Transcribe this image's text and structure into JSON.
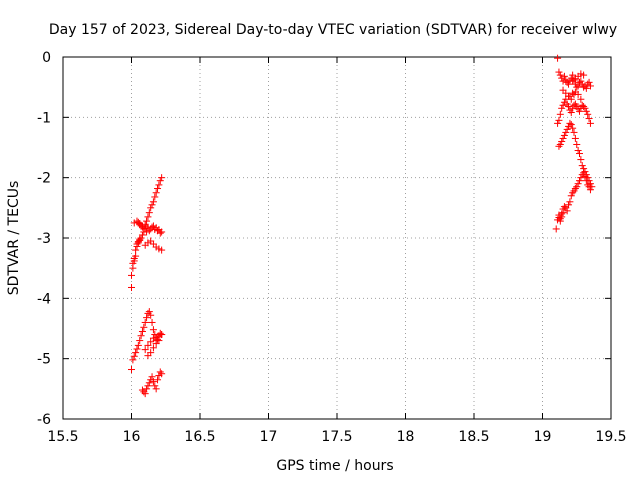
{
  "chart_data": {
    "type": "scatter",
    "title": "Day 157 of 2023, Sidereal Day-to-day VTEC variation (SDTVAR) for receiver wlwy",
    "xlabel": "GPS time / hours",
    "ylabel": "SDTVAR / TECUs",
    "xlim": [
      15.5,
      19.5
    ],
    "ylim": [
      -6,
      0
    ],
    "xticks": [
      "15.5",
      "16",
      "16.5",
      "17",
      "17.5",
      "18",
      "18.5",
      "19",
      "19.5"
    ],
    "yticks": [
      "0",
      "-1",
      "-2",
      "-3",
      "-4",
      "-5",
      "-6"
    ],
    "grid": true,
    "marker": "+",
    "color": "#ff0000",
    "series": [
      {
        "x": [
          16.0,
          16.0,
          16.01,
          16.01,
          16.02,
          16.02,
          16.03,
          16.03,
          16.04,
          16.04,
          16.05,
          16.05,
          16.06,
          16.06,
          16.07,
          16.08,
          16.09,
          16.1,
          16.11,
          16.12,
          16.13,
          16.14,
          16.15,
          16.16,
          16.17,
          16.18,
          16.19,
          16.2,
          16.21,
          16.22,
          16.02,
          16.04,
          16.06,
          16.08,
          16.1,
          16.12,
          16.14,
          16.16,
          16.18,
          16.2,
          16.22,
          16.1,
          16.08,
          16.06,
          16.05,
          16.07,
          16.09,
          16.11,
          16.13,
          16.15,
          16.17,
          16.19,
          16.21,
          16.14,
          16.16,
          16.18,
          16.2,
          16.22,
          16.12,
          16.1,
          16.0,
          16.01,
          16.02,
          16.03,
          16.04,
          16.05,
          16.06,
          16.07,
          16.08,
          16.09,
          16.1,
          16.11,
          16.12,
          16.13,
          16.14,
          16.15,
          16.16,
          16.17,
          16.18,
          16.19,
          16.2,
          16.21,
          16.22,
          16.1,
          16.12,
          16.14,
          16.16,
          16.18,
          16.2,
          16.22,
          16.08,
          16.09,
          16.1,
          16.11,
          16.12,
          16.13,
          16.14,
          16.15,
          16.16,
          16.17,
          16.18,
          16.19,
          16.2,
          16.21,
          16.22,
          16.12,
          16.14,
          16.16,
          16.18,
          16.2
        ],
        "y": [
          -3.82,
          -3.62,
          -3.5,
          -3.42,
          -3.38,
          -3.34,
          -3.3,
          -3.2,
          -3.14,
          -3.1,
          -3.08,
          -3.06,
          -3.04,
          -3.02,
          -3.0,
          -2.95,
          -2.9,
          -2.8,
          -2.72,
          -2.65,
          -2.58,
          -2.5,
          -2.45,
          -2.4,
          -2.32,
          -2.25,
          -2.18,
          -2.12,
          -2.05,
          -2.0,
          -2.75,
          -2.72,
          -2.76,
          -2.8,
          -2.78,
          -2.82,
          -2.85,
          -2.8,
          -2.83,
          -2.86,
          -2.9,
          -2.84,
          -2.82,
          -2.78,
          -2.74,
          -2.8,
          -2.85,
          -2.9,
          -2.88,
          -2.82,
          -2.86,
          -2.88,
          -2.92,
          -3.05,
          -3.1,
          -3.15,
          -3.18,
          -3.2,
          -3.08,
          -3.12,
          -5.18,
          -5.02,
          -4.96,
          -4.9,
          -4.84,
          -4.78,
          -4.7,
          -4.62,
          -4.55,
          -4.48,
          -4.4,
          -4.32,
          -4.25,
          -4.22,
          -4.28,
          -4.4,
          -4.52,
          -4.6,
          -4.65,
          -4.68,
          -4.62,
          -4.58,
          -4.6,
          -4.85,
          -4.78,
          -4.72,
          -4.66,
          -4.7,
          -4.64,
          -4.6,
          -5.52,
          -5.55,
          -5.58,
          -5.5,
          -5.45,
          -5.4,
          -5.35,
          -5.3,
          -5.38,
          -5.45,
          -5.5,
          -5.35,
          -5.28,
          -5.22,
          -5.25,
          -4.95,
          -4.9,
          -4.82,
          -4.75,
          -4.7
        ]
      },
      {
        "x": [
          19.1,
          19.11,
          19.12,
          19.12,
          19.13,
          19.13,
          19.14,
          19.14,
          19.15,
          19.15,
          19.16,
          19.17,
          19.18,
          19.19,
          19.2,
          19.21,
          19.22,
          19.23,
          19.24,
          19.25,
          19.26,
          19.27,
          19.28,
          19.29,
          19.3,
          19.31,
          19.32,
          19.33,
          19.34,
          19.35,
          19.11,
          19.12,
          19.13,
          19.14,
          19.15,
          19.16,
          19.17,
          19.18,
          19.19,
          19.2,
          19.21,
          19.22,
          19.23,
          19.24,
          19.25,
          19.26,
          19.27,
          19.28,
          19.29,
          19.3,
          19.31,
          19.32,
          19.33,
          19.34,
          19.35,
          19.15,
          19.17,
          19.19,
          19.21,
          19.23,
          19.11,
          19.12,
          19.13,
          19.14,
          19.15,
          19.16,
          19.17,
          19.18,
          19.19,
          19.2,
          19.21,
          19.22,
          19.23,
          19.24,
          19.25,
          19.26,
          19.27,
          19.28,
          19.29,
          19.3,
          19.31,
          19.32,
          19.33,
          19.34,
          19.35,
          19.2,
          19.22,
          19.24,
          19.26,
          19.28,
          19.12,
          19.13,
          19.14,
          19.15,
          19.16,
          19.17,
          19.18,
          19.19,
          19.2,
          19.21,
          19.22,
          19.23,
          19.24,
          19.25,
          19.26,
          19.27,
          19.28,
          19.29,
          19.3,
          19.31,
          19.32,
          19.33,
          19.34,
          19.35,
          19.36,
          19.3,
          19.28,
          19.26,
          19.24,
          19.22
        ],
        "y": [
          -2.85,
          -2.7,
          -2.62,
          -2.66,
          -2.68,
          -2.72,
          -2.65,
          -2.6,
          -2.58,
          -2.52,
          -2.48,
          -2.5,
          -2.55,
          -2.45,
          -2.4,
          -2.3,
          -2.25,
          -2.22,
          -2.18,
          -2.15,
          -2.1,
          -2.05,
          -2.0,
          -1.95,
          -1.92,
          -1.98,
          -2.05,
          -2.12,
          -2.15,
          -2.2,
          -0.02,
          -0.25,
          -0.3,
          -0.35,
          -0.4,
          -0.32,
          -0.38,
          -0.42,
          -0.45,
          -0.4,
          -0.35,
          -0.3,
          -0.38,
          -0.45,
          -0.5,
          -0.48,
          -0.42,
          -0.4,
          -0.45,
          -0.5,
          -0.48,
          -0.52,
          -0.45,
          -0.42,
          -0.48,
          -0.55,
          -0.6,
          -0.65,
          -0.7,
          -0.62,
          -1.1,
          -1.05,
          -0.95,
          -0.85,
          -0.8,
          -0.75,
          -0.7,
          -0.78,
          -0.82,
          -0.88,
          -0.92,
          -0.85,
          -0.8,
          -0.78,
          -0.82,
          -0.86,
          -0.9,
          -0.85,
          -0.8,
          -0.82,
          -0.85,
          -0.9,
          -0.95,
          -1.02,
          -1.1,
          -0.65,
          -0.6,
          -0.58,
          -0.62,
          -0.7,
          -1.48,
          -1.45,
          -1.4,
          -1.35,
          -1.3,
          -1.25,
          -1.2,
          -1.15,
          -1.1,
          -1.12,
          -1.18,
          -1.25,
          -1.35,
          -1.45,
          -1.55,
          -1.6,
          -1.7,
          -1.8,
          -1.85,
          -1.9,
          -1.95,
          -2.0,
          -2.05,
          -2.1,
          -2.15,
          -0.3,
          -0.28,
          -0.32,
          -0.36,
          -0.4
        ]
      }
    ]
  }
}
